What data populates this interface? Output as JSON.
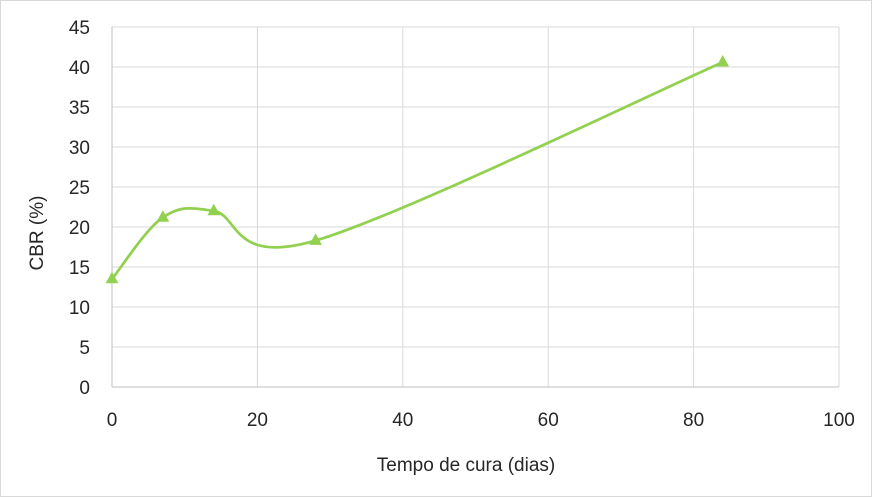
{
  "chart_data": {
    "type": "line",
    "title": "",
    "xlabel": "Tempo de cura (dias)",
    "ylabel": "CBR (%)",
    "xlim": [
      0,
      100
    ],
    "ylim": [
      0,
      45
    ],
    "xticks": [
      0,
      20,
      40,
      60,
      80,
      100
    ],
    "yticks": [
      0,
      5,
      10,
      15,
      20,
      25,
      30,
      35,
      40,
      45
    ],
    "grid": true,
    "smoothed": true,
    "marker": "triangle",
    "series": [
      {
        "color": "#92d050",
        "points": [
          {
            "x": 0,
            "y": 13.5
          },
          {
            "x": 7,
            "y": 21.2
          },
          {
            "x": 14,
            "y": 22.0
          },
          {
            "x": 28,
            "y": 18.3
          },
          {
            "x": 84,
            "y": 40.6
          }
        ]
      }
    ]
  }
}
